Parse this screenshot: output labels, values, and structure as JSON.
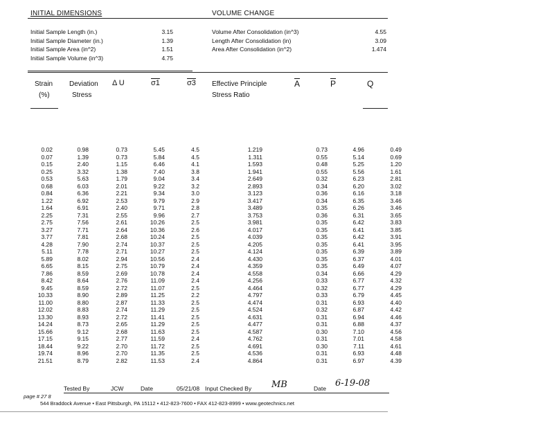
{
  "initial": {
    "title": "INITIAL DIMENSIONS",
    "rows": [
      {
        "label": "Initial Sample Length (in.)",
        "value": "3.15"
      },
      {
        "label": "Initial Sample Diameter (in.)",
        "value": "1.39"
      },
      {
        "label": "Initial Sample Area (in^2)",
        "value": "1.51"
      },
      {
        "label": "Initial Sample Volume (in^3)",
        "value": "4.75"
      }
    ]
  },
  "volume": {
    "title": "VOLUME CHANGE",
    "rows": [
      {
        "label": "Volume After Consolidation (in^3)",
        "value": "4.55"
      },
      {
        "label": "Length After Consolidation (in)",
        "value": "3.09"
      },
      {
        "label": "Area After Consolidation (in^2)",
        "value": "1.474"
      }
    ]
  },
  "columns": {
    "strain": "Strain",
    "strain_unit": "(%)",
    "deviation": "Deviation",
    "deviation_sub": "Stress",
    "delta_u": "Δ U",
    "sigma1": "σ1",
    "sigma3": "σ3",
    "effective": "Effective Principle",
    "effective_sub": "Stress Ratio",
    "a": "A",
    "p": "P",
    "q": "Q"
  },
  "rows": [
    [
      "0.02",
      "0.98",
      "0.73",
      "5.45",
      "4.5",
      "1.219",
      "0.73",
      "4.96",
      "0.49"
    ],
    [
      "0.07",
      "1.39",
      "0.73",
      "5.84",
      "4.5",
      "1.311",
      "0.55",
      "5.14",
      "0.69"
    ],
    [
      "0.15",
      "2.40",
      "1.15",
      "6.46",
      "4.1",
      "1.593",
      "0.48",
      "5.25",
      "1.20"
    ],
    [
      "0.25",
      "3.32",
      "1.38",
      "7.40",
      "3.8",
      "1.941",
      "0.55",
      "5.56",
      "1.61"
    ],
    [
      "0.53",
      "5.63",
      "1.79",
      "9.04",
      "3.4",
      "2.649",
      "0.32",
      "6.23",
      "2.81"
    ],
    [
      "0.68",
      "6.03",
      "2.01",
      "9.22",
      "3.2",
      "2.893",
      "0.34",
      "6.20",
      "3.02"
    ],
    [
      "0.84",
      "6.36",
      "2.21",
      "9.34",
      "3.0",
      "3.123",
      "0.36",
      "6.16",
      "3.18"
    ],
    [
      "1.22",
      "6.92",
      "2.53",
      "9.79",
      "2.9",
      "3.417",
      "0.34",
      "6.35",
      "3.46"
    ],
    [
      "1.64",
      "6.91",
      "2.40",
      "9.71",
      "2.8",
      "3.489",
      "0.35",
      "6.26",
      "3.46"
    ],
    [
      "2.25",
      "7.31",
      "2.55",
      "9.96",
      "2.7",
      "3.753",
      "0.36",
      "6.31",
      "3.65"
    ],
    [
      "2.75",
      "7.56",
      "2.61",
      "10.26",
      "2.5",
      "3.981",
      "0.35",
      "6.42",
      "3.83"
    ],
    [
      "3.27",
      "7.71",
      "2.64",
      "10.36",
      "2.6",
      "4.017",
      "0.35",
      "6.41",
      "3.85"
    ],
    [
      "3.77",
      "7.81",
      "2.68",
      "10.24",
      "2.5",
      "4.039",
      "0.35",
      "6.42",
      "3.91"
    ],
    [
      "4.28",
      "7.90",
      "2.74",
      "10.37",
      "2.5",
      "4.205",
      "0.35",
      "6.41",
      "3.95"
    ],
    [
      "5.11",
      "7.78",
      "2.71",
      "10.27",
      "2.5",
      "4.124",
      "0.35",
      "6.39",
      "3.89"
    ],
    [
      "5.89",
      "8.02",
      "2.94",
      "10.56",
      "2.4",
      "4.430",
      "0.35",
      "6.37",
      "4.01"
    ],
    [
      "6.65",
      "8.15",
      "2.75",
      "10.79",
      "2.4",
      "4.359",
      "0.35",
      "6.49",
      "4.07"
    ],
    [
      "7.86",
      "8.59",
      "2.69",
      "10.78",
      "2.4",
      "4.558",
      "0.34",
      "6.66",
      "4.29"
    ],
    [
      "8.42",
      "8.64",
      "2.76",
      "11.09",
      "2.4",
      "4.256",
      "0.33",
      "6.77",
      "4.32"
    ],
    [
      "9.45",
      "8.59",
      "2.72",
      "11.07",
      "2.5",
      "4.464",
      "0.32",
      "6.77",
      "4.29"
    ],
    [
      "10.33",
      "8.90",
      "2.89",
      "11.25",
      "2.2",
      "4.797",
      "0.33",
      "6.79",
      "4.45"
    ],
    [
      "11.00",
      "8.80",
      "2.87",
      "11.33",
      "2.5",
      "4.474",
      "0.31",
      "6.93",
      "4.40"
    ],
    [
      "12.02",
      "8.83",
      "2.74",
      "11.29",
      "2.5",
      "4.524",
      "0.32",
      "6.87",
      "4.42"
    ],
    [
      "13.30",
      "8.93",
      "2.72",
      "11.41",
      "2.5",
      "4.631",
      "0.31",
      "6.94",
      "4.46"
    ],
    [
      "14.24",
      "8.73",
      "2.65",
      "11.29",
      "2.5",
      "4.477",
      "0.31",
      "6.88",
      "4.37"
    ],
    [
      "15.66",
      "9.12",
      "2.68",
      "11.63",
      "2.5",
      "4.587",
      "0.30",
      "7.10",
      "4.56"
    ],
    [
      "17.15",
      "9.15",
      "2.77",
      "11.59",
      "2.4",
      "4.762",
      "0.31",
      "7.01",
      "4.58"
    ],
    [
      "18.44",
      "9.22",
      "2.70",
      "11.72",
      "2.5",
      "4.691",
      "0.30",
      "7.11",
      "4.61"
    ],
    [
      "19.74",
      "8.96",
      "2.70",
      "11.35",
      "2.5",
      "4.536",
      "0.31",
      "6.93",
      "4.48"
    ],
    [
      "21.51",
      "8.79",
      "2.82",
      "11.53",
      "2.4",
      "4.864",
      "0.31",
      "6.97",
      "4.39"
    ]
  ],
  "signoff": {
    "tested_by_label": "Tested By",
    "tested_by": "JCW",
    "date_label": "Date",
    "date_value": "05/21/08",
    "checked_label": "Input Checked By",
    "checked_initials": "MB",
    "date2_label": "Date",
    "date2_value": "6-19-08"
  },
  "page_label": "page # 27 8",
  "footer": "544 Braddock Avenue  •  East Pittsburgh, PA 15112  •  412-823-7600  •  FAX 412-823-8999  •  www.geotechnics.net"
}
